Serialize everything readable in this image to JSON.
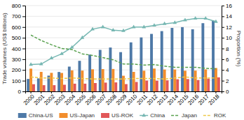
{
  "chart_data": {
    "type": "bar",
    "categories": [
      "2000",
      "2001",
      "2002",
      "2003",
      "2004",
      "2005",
      "2006",
      "2007",
      "2008",
      "2009",
      "2010",
      "2011",
      "2012",
      "2013",
      "2014",
      "2015",
      "2016",
      "2017",
      "2018"
    ],
    "series": [
      {
        "name": "China-US",
        "type": "bar",
        "values": [
          116,
          121,
          147,
          181,
          231,
          285,
          343,
          387,
          409,
          366,
          457,
          503,
          536,
          562,
          592,
          599,
          579,
          636,
          660
        ]
      },
      {
        "name": "US-Japan",
        "type": "bar",
        "values": [
          212,
          182,
          173,
          172,
          196,
          194,
          206,
          208,
          209,
          146,
          182,
          193,
          213,
          204,
          204,
          193,
          194,
          205,
          218
        ]
      },
      {
        "name": "US-ROK",
        "type": "bar",
        "values": [
          67,
          58,
          58,
          62,
          72,
          72,
          78,
          82,
          84,
          68,
          88,
          101,
          100,
          103,
          113,
          115,
          106,
          119,
          131
        ]
      },
      {
        "name": "China",
        "type": "line",
        "axis": "y2",
        "marker": "triangle",
        "values": [
          5.0,
          5.1,
          6.2,
          7.0,
          8.2,
          10.0,
          11.6,
          12.0,
          11.4,
          11.3,
          12.0,
          12.0,
          12.3,
          12.6,
          12.8,
          13.3,
          13.6,
          13.6,
          13.0
        ]
      },
      {
        "name": "Japan",
        "type": "line",
        "axis": "y2",
        "line_style": "dashed",
        "values": [
          10.5,
          9.5,
          8.7,
          8.0,
          7.8,
          7.0,
          6.7,
          6.3,
          5.9,
          5.1,
          5.1,
          4.9,
          5.0,
          4.7,
          4.5,
          4.5,
          4.5,
          4.3,
          4.2
        ]
      },
      {
        "name": "ROK",
        "type": "line",
        "axis": "y2",
        "line_style": "dashed",
        "values": [
          2.7,
          2.5,
          2.5,
          2.4,
          2.5,
          2.4,
          2.3,
          2.3,
          2.3,
          2.3,
          2.4,
          2.4,
          2.4,
          2.3,
          2.5,
          2.7,
          2.5,
          2.5,
          2.5
        ]
      }
    ],
    "ylabel": "Trade volumes (US$ billions)",
    "y2label": "Proportion (%)",
    "ylim": [
      0,
      800
    ],
    "yticks": [
      0,
      100,
      200,
      300,
      400,
      500,
      600,
      700,
      800
    ],
    "y2lim": [
      0.0,
      16.0
    ],
    "y2ticks": [
      0.0,
      2.0,
      4.0,
      6.0,
      8.0,
      10.0,
      12.0,
      14.0,
      16.0
    ],
    "grid": true,
    "legend": "bottom"
  }
}
